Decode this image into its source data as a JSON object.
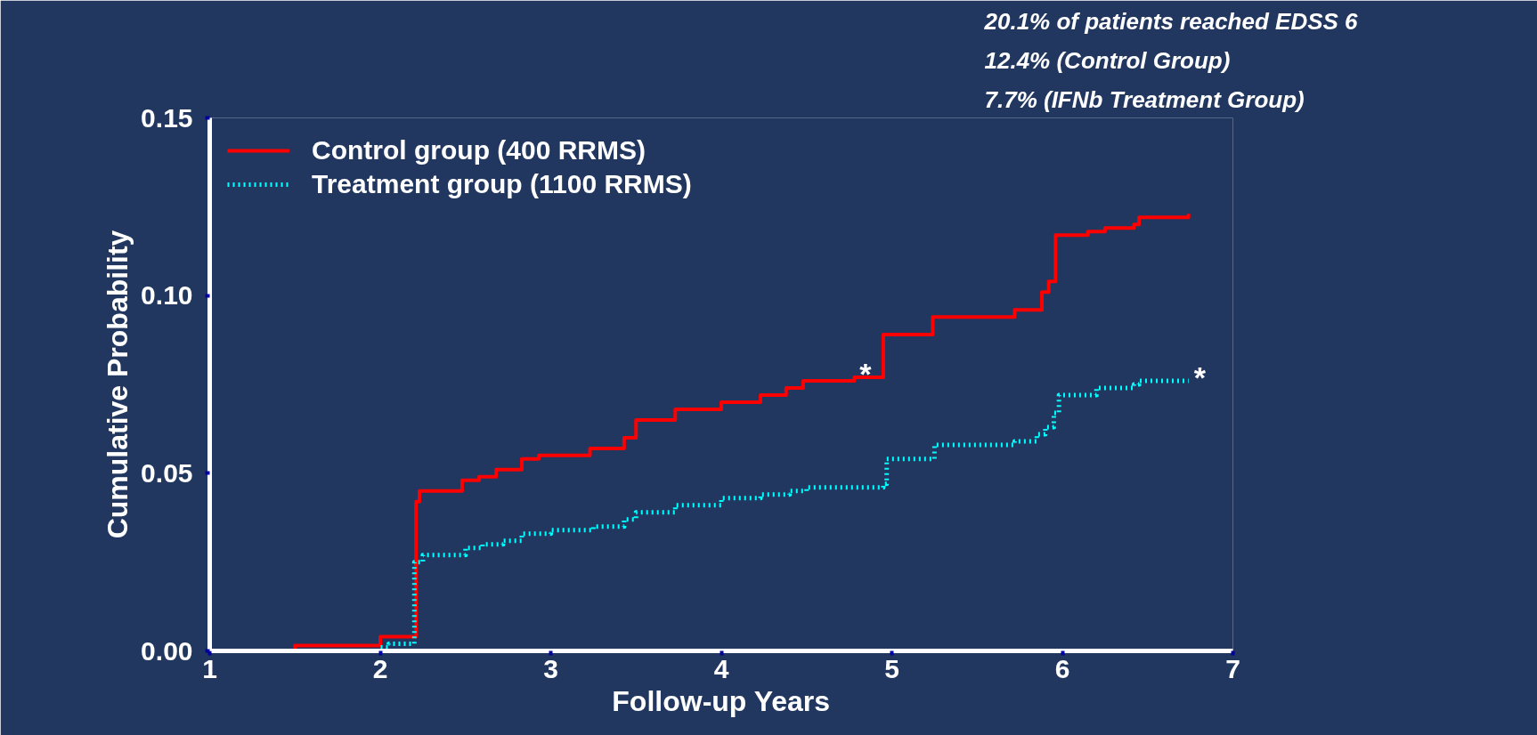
{
  "chart_data": {
    "type": "step",
    "xlabel": "Follow-up Years",
    "ylabel": "Cumulative Probability",
    "xlim": [
      1,
      7
    ],
    "xticks": [
      1,
      2,
      3,
      4,
      5,
      6,
      7
    ],
    "ylim": [
      0,
      0.15
    ],
    "yticks": [
      {
        "value": 0,
        "label": "0.00"
      },
      {
        "value": 0.05,
        "label": "0.05"
      },
      {
        "value": 0.1,
        "label": "0.10"
      },
      {
        "value": 0.15,
        "label": "0.15"
      }
    ],
    "legend": "top left",
    "grid": false,
    "series": [
      {
        "name": "Control group (400 RRMS)",
        "color": "#ff0000",
        "line_style": "solid",
        "x": [
          1.24,
          1.5,
          2.0,
          2.21,
          2.23,
          2.48,
          2.58,
          2.68,
          2.83,
          2.93,
          3.23,
          3.43,
          3.5,
          3.73,
          4.0,
          4.23,
          4.38,
          4.48,
          4.78,
          4.95,
          5.24,
          5.72,
          5.88,
          5.92,
          5.96,
          6.15,
          6.25,
          6.42,
          6.45,
          6.74
        ],
        "values": [
          0.0,
          0.0015,
          0.004,
          0.042,
          0.045,
          0.048,
          0.049,
          0.051,
          0.054,
          0.055,
          0.057,
          0.06,
          0.065,
          0.068,
          0.07,
          0.072,
          0.074,
          0.076,
          0.077,
          0.089,
          0.094,
          0.096,
          0.101,
          0.104,
          0.117,
          0.118,
          0.119,
          0.12,
          0.122,
          0.123
        ]
      },
      {
        "name": "Treatment group (1100 RRMS)",
        "color": "#00ffff",
        "line_style": "dotted",
        "x": [
          1.24,
          2.0,
          2.05,
          2.2,
          2.25,
          2.5,
          2.6,
          2.72,
          2.83,
          3.0,
          3.25,
          3.43,
          3.5,
          3.73,
          4.0,
          4.23,
          4.4,
          4.5,
          4.95,
          4.97,
          5.25,
          5.72,
          5.85,
          5.9,
          5.95,
          5.98,
          6.2,
          6.42,
          6.45,
          6.74
        ],
        "values": [
          0.0,
          0.001,
          0.002,
          0.025,
          0.027,
          0.029,
          0.03,
          0.031,
          0.033,
          0.034,
          0.035,
          0.037,
          0.039,
          0.041,
          0.043,
          0.044,
          0.045,
          0.046,
          0.047,
          0.054,
          0.058,
          0.059,
          0.061,
          0.063,
          0.067,
          0.072,
          0.074,
          0.075,
          0.076,
          0.076
        ]
      }
    ],
    "annotations": [
      "20.1% of patients reached EDSS 6",
      "12.4% (Control Group)",
      "7.7%  (IFNb Treatment Group)",
      {
        "text": "*",
        "x": 4.78,
        "y": 0.077
      },
      {
        "text": "*",
        "x": 6.74,
        "y": 0.076
      }
    ]
  }
}
